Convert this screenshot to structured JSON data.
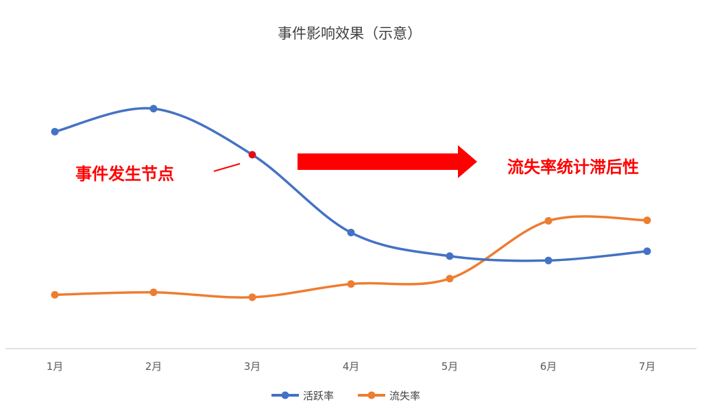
{
  "chart_data": {
    "type": "line",
    "title": "事件影响效果（示意）",
    "categories": [
      "1月",
      "2月",
      "3月",
      "4月",
      "5月",
      "6月",
      "7月"
    ],
    "series": [
      {
        "name": "活跃率",
        "color": "#4472c4",
        "values": [
          44.3,
          49.0,
          39.6,
          23.7,
          18.9,
          18.0,
          19.9
        ]
      },
      {
        "name": "流失率",
        "color": "#ed7d31",
        "values": [
          11.0,
          11.5,
          10.5,
          13.2,
          14.3,
          26.1,
          26.2
        ]
      }
    ],
    "ylim": [
      0,
      60
    ],
    "grid": false,
    "legend_position": "bottom",
    "annotations": {
      "event_label": "事件发生节点",
      "event_category": "3月",
      "event_marker_color": "#ff0000",
      "lag_label": "流失率统计滞后性",
      "arrow_color": "#ff0000"
    }
  }
}
